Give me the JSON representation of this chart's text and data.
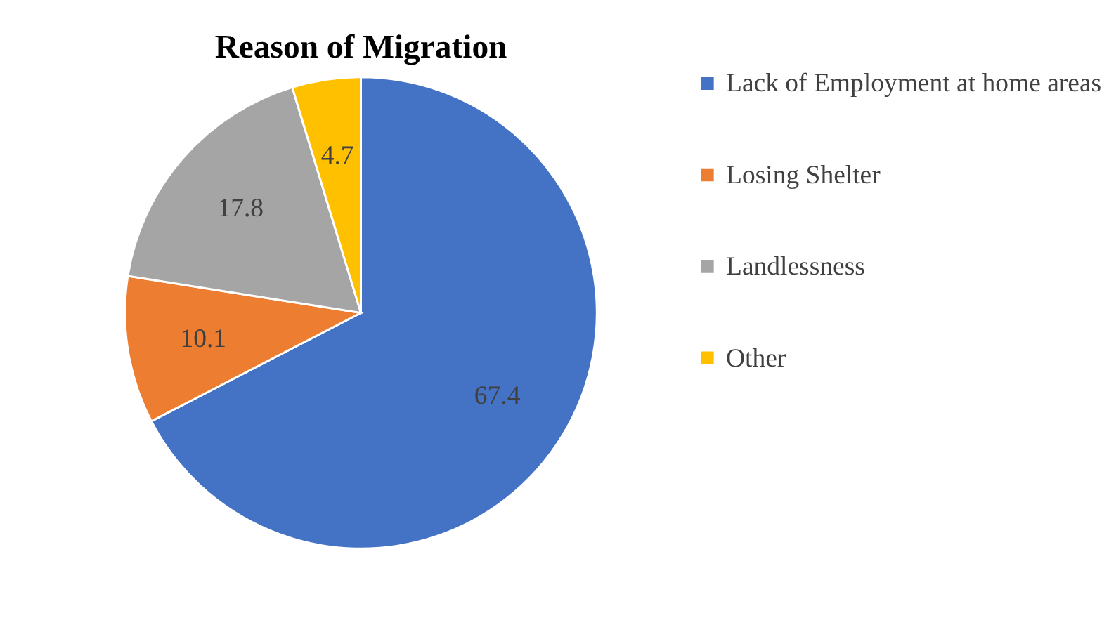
{
  "chart_data": {
    "type": "pie",
    "title": "Reason of Migration",
    "categories": [
      "Lack of Employment at home areas",
      "Losing Shelter",
      "Landlessness",
      "Other"
    ],
    "values": [
      67.4,
      10.1,
      17.8,
      4.7
    ],
    "colors": [
      "#4472c4",
      "#ed7d31",
      "#a5a5a5",
      "#ffc000"
    ],
    "data_labels": true,
    "legend": "right"
  }
}
